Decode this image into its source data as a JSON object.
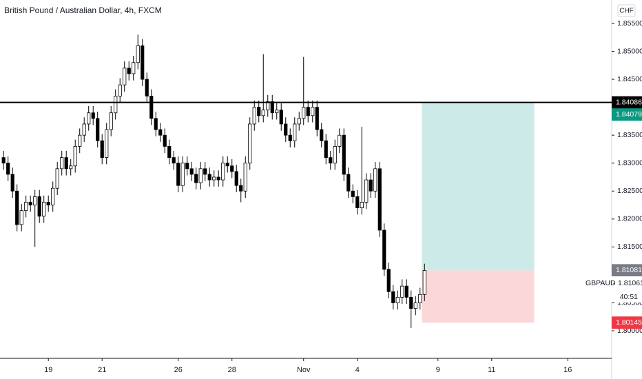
{
  "chart_data": {
    "type": "candlestick",
    "title": "British Pound / Australian Dollar, 4h, FXCM",
    "currency": "CHF",
    "symbol": "GBPAUD",
    "last_price": 1.81061,
    "countdown": "40:51",
    "up_color": "#ffffff",
    "down_color": "#000000",
    "open": [
      1.831,
      1.83,
      1.828,
      1.825,
      1.819,
      1.8215,
      1.823,
      1.8225,
      1.824,
      1.8205,
      1.823,
      1.8225,
      1.8255,
      1.829,
      1.831,
      1.829,
      1.8295,
      1.833,
      1.835,
      1.837,
      1.839,
      1.838,
      1.834,
      1.831,
      1.836,
      1.839,
      1.842,
      1.844,
      1.847,
      1.846,
      1.848,
      1.851,
      1.845,
      1.842,
      1.838,
      1.836,
      1.835,
      1.833,
      1.831,
      1.83,
      1.826,
      1.83,
      1.829,
      1.828,
      1.8265,
      1.829,
      1.828,
      1.827,
      1.8275,
      1.827,
      1.83,
      1.8295,
      1.8285,
      1.826,
      1.825,
      1.83,
      1.837,
      1.84,
      1.8385,
      1.8395,
      1.841,
      1.839,
      1.8395,
      1.837,
      1.835,
      1.834,
      1.837,
      1.838,
      1.84,
      1.8385,
      1.84,
      1.836,
      1.834,
      1.831,
      1.83,
      1.833,
      1.835,
      1.828,
      1.825,
      1.824,
      1.822,
      1.823,
      1.827,
      1.825,
      1.829,
      1.818,
      1.811,
      1.807,
      1.805,
      1.806,
      1.808,
      1.806,
      1.804,
      1.805,
      1.8065
    ],
    "high": [
      1.8322,
      1.8312,
      1.8292,
      1.8262,
      1.8227,
      1.8242,
      1.8242,
      1.8252,
      1.8252,
      1.8242,
      1.8242,
      1.8267,
      1.8302,
      1.8322,
      1.8322,
      1.8307,
      1.8342,
      1.8362,
      1.8382,
      1.8402,
      1.8402,
      1.8392,
      1.8352,
      1.8372,
      1.8402,
      1.8432,
      1.8452,
      1.8482,
      1.8482,
      1.8492,
      1.853,
      1.8522,
      1.8462,
      1.8432,
      1.8392,
      1.8372,
      1.8362,
      1.8342,
      1.8322,
      1.8312,
      1.8312,
      1.8312,
      1.8302,
      1.8292,
      1.8302,
      1.8302,
      1.8292,
      1.8287,
      1.8287,
      1.8312,
      1.8312,
      1.8307,
      1.8297,
      1.8272,
      1.8312,
      1.8382,
      1.8412,
      1.8412,
      1.8495,
      1.8422,
      1.8422,
      1.8407,
      1.8407,
      1.8382,
      1.8362,
      1.8382,
      1.8392,
      1.849,
      1.8412,
      1.8412,
      1.8412,
      1.8372,
      1.8352,
      1.8322,
      1.8342,
      1.8362,
      1.8362,
      1.8292,
      1.8262,
      1.8252,
      1.8365,
      1.8282,
      1.8282,
      1.8302,
      1.8302,
      1.8192,
      1.8122,
      1.8082,
      1.8072,
      1.8092,
      1.8092,
      1.8072,
      1.8062,
      1.8077,
      1.812
    ],
    "low": [
      1.8288,
      1.8268,
      1.8238,
      1.8178,
      1.8178,
      1.8203,
      1.8213,
      1.815,
      1.8193,
      1.8193,
      1.8213,
      1.8213,
      1.8243,
      1.8278,
      1.8278,
      1.8278,
      1.8283,
      1.8318,
      1.8338,
      1.8358,
      1.8368,
      1.8328,
      1.8298,
      1.8298,
      1.8348,
      1.8378,
      1.8408,
      1.8428,
      1.8448,
      1.8448,
      1.8468,
      1.8438,
      1.8408,
      1.8368,
      1.8348,
      1.8338,
      1.8318,
      1.8298,
      1.8288,
      1.8248,
      1.8248,
      1.8278,
      1.8268,
      1.8253,
      1.8253,
      1.8268,
      1.8258,
      1.8258,
      1.8258,
      1.8258,
      1.8283,
      1.8273,
      1.8248,
      1.823,
      1.8238,
      1.8288,
      1.8358,
      1.8373,
      1.8373,
      1.8383,
      1.8378,
      1.8378,
      1.8358,
      1.8338,
      1.8328,
      1.8328,
      1.8358,
      1.8368,
      1.8373,
      1.8373,
      1.8348,
      1.8328,
      1.8298,
      1.8288,
      1.8288,
      1.8318,
      1.8268,
      1.8238,
      1.8228,
      1.8208,
      1.8208,
      1.8218,
      1.8238,
      1.8238,
      1.8168,
      1.8098,
      1.8058,
      1.8038,
      1.8038,
      1.8048,
      1.8048,
      1.8005,
      1.8028,
      1.8038,
      1.8053
    ],
    "close": [
      1.83,
      1.828,
      1.825,
      1.819,
      1.8215,
      1.823,
      1.8225,
      1.824,
      1.8205,
      1.823,
      1.8225,
      1.8255,
      1.829,
      1.831,
      1.829,
      1.8295,
      1.833,
      1.835,
      1.837,
      1.839,
      1.838,
      1.834,
      1.831,
      1.836,
      1.839,
      1.842,
      1.844,
      1.847,
      1.846,
      1.848,
      1.851,
      1.845,
      1.842,
      1.838,
      1.836,
      1.835,
      1.833,
      1.831,
      1.83,
      1.826,
      1.83,
      1.829,
      1.828,
      1.8265,
      1.829,
      1.828,
      1.827,
      1.8275,
      1.827,
      1.83,
      1.8295,
      1.8285,
      1.826,
      1.825,
      1.83,
      1.837,
      1.84,
      1.8385,
      1.8395,
      1.841,
      1.839,
      1.8395,
      1.837,
      1.835,
      1.834,
      1.837,
      1.838,
      1.84,
      1.8385,
      1.84,
      1.836,
      1.834,
      1.831,
      1.83,
      1.833,
      1.835,
      1.828,
      1.825,
      1.824,
      1.822,
      1.823,
      1.827,
      1.825,
      1.829,
      1.818,
      1.811,
      1.807,
      1.805,
      1.806,
      1.808,
      1.806,
      1.804,
      1.805,
      1.8065,
      1.8108
    ],
    "xlim": [
      -0.8,
      135.8
    ],
    "xticks": [
      {
        "value": 10,
        "label": "19"
      },
      {
        "value": 22,
        "label": "21"
      },
      {
        "value": 39,
        "label": "26"
      },
      {
        "value": 51,
        "label": "28"
      },
      {
        "value": 67,
        "label": "Nov"
      },
      {
        "value": 79,
        "label": "4"
      },
      {
        "value": 97,
        "label": "9"
      },
      {
        "value": 109,
        "label": "11"
      },
      {
        "value": 126,
        "label": "16"
      }
    ],
    "ylim": [
      1.79507,
      1.85919
    ],
    "yticks": [
      {
        "value": 1.855,
        "label": "1.85500"
      },
      {
        "value": 1.85,
        "label": "1.85000"
      },
      {
        "value": 1.845,
        "label": "1.84500"
      },
      {
        "value": 1.84,
        "label": "1.84000"
      },
      {
        "value": 1.835,
        "label": "1.83500"
      },
      {
        "value": 1.83,
        "label": "1.83000"
      },
      {
        "value": 1.825,
        "label": "1.82500"
      },
      {
        "value": 1.82,
        "label": "1.82000"
      },
      {
        "value": 1.815,
        "label": "1.81500"
      },
      {
        "value": 1.81,
        "label": "1.81000"
      },
      {
        "value": 1.805,
        "label": "1.80500"
      },
      {
        "value": 1.8,
        "label": "1.80000"
      }
    ],
    "horizontal_line": 1.84086,
    "position": {
      "start_x": 93.4,
      "end_x": 118.5,
      "target": 1.84079,
      "entry": 1.81081,
      "stop": 1.80145
    }
  }
}
